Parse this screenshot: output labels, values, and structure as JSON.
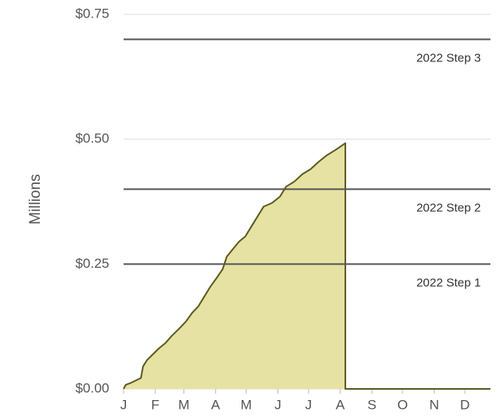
{
  "chart_data": {
    "type": "area",
    "y_label": "Millions",
    "x": [
      1,
      3,
      8,
      14,
      18,
      20,
      24,
      30,
      36,
      42,
      48,
      55,
      62,
      68,
      74,
      80,
      86,
      92,
      98,
      102,
      108,
      114,
      120,
      126,
      132,
      138,
      146,
      154,
      160,
      168,
      176,
      184,
      192,
      200,
      208,
      218,
      218,
      360
    ],
    "values": [
      0,
      0.008,
      0.012,
      0.018,
      0.022,
      0.045,
      0.058,
      0.07,
      0.082,
      0.092,
      0.106,
      0.12,
      0.135,
      0.152,
      0.165,
      0.185,
      0.205,
      0.222,
      0.24,
      0.265,
      0.28,
      0.295,
      0.305,
      0.325,
      0.345,
      0.365,
      0.372,
      0.385,
      0.405,
      0.415,
      0.43,
      0.44,
      0.455,
      0.468,
      0.478,
      0.492,
      0,
      0
    ],
    "color": "#e6e2a3",
    "line_color": "#5c5a1e",
    "xlim": [
      1,
      360
    ],
    "xticks": [
      {
        "value": 1,
        "label": "J"
      },
      {
        "value": 32,
        "label": "F"
      },
      {
        "value": 60,
        "label": "M"
      },
      {
        "value": 91,
        "label": "A"
      },
      {
        "value": 121,
        "label": "M"
      },
      {
        "value": 152,
        "label": "J"
      },
      {
        "value": 182,
        "label": "J"
      },
      {
        "value": 213,
        "label": "A"
      },
      {
        "value": 244,
        "label": "S"
      },
      {
        "value": 274,
        "label": "O"
      },
      {
        "value": 305,
        "label": "N"
      },
      {
        "value": 335,
        "label": "D"
      }
    ],
    "ylim": [
      0,
      0.75
    ],
    "yticks": [
      {
        "value": 0,
        "label": "$0.00"
      },
      {
        "value": 0.25,
        "label": "$0.25"
      },
      {
        "value": 0.5,
        "label": "$0.50"
      },
      {
        "value": 0.75,
        "label": "$0.75"
      }
    ],
    "grid": true,
    "reference_lines": [
      {
        "value": 0.7,
        "label": "2022 Step 3"
      },
      {
        "value": 0.4,
        "label": "2022 Step 2"
      },
      {
        "value": 0.25,
        "label": "2022 Step 1"
      }
    ],
    "reference_color": "#555555"
  }
}
